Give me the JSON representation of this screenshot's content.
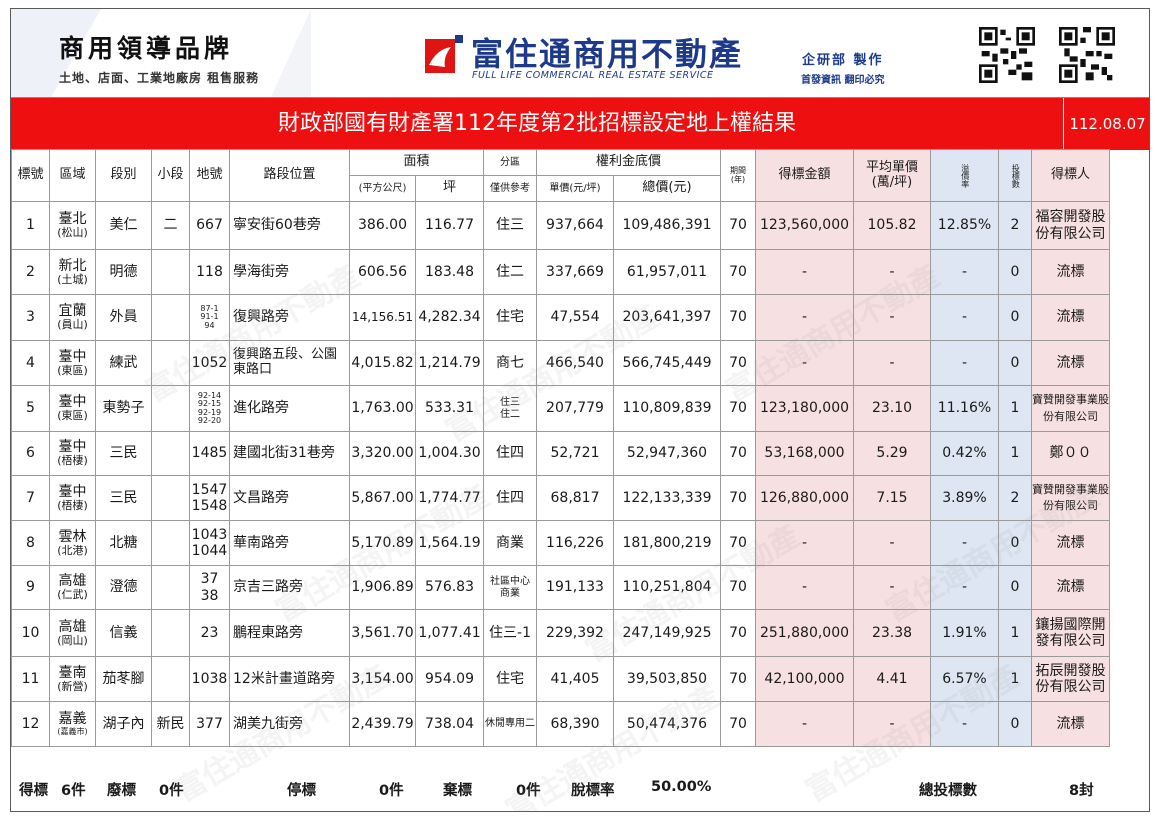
{
  "header": {
    "brand_title": "商用領導品牌",
    "brand_sub": "土地、店面、工業地廠房 租售服務",
    "company_name": "富住通商用不動產",
    "company_en": "FULL LIFE COMMERCIAL REAL ESTATE SERVICE",
    "dept": "企研部 製作",
    "dept_sub": "首發資訊 翻印必究",
    "brand_color": "#1d3a8a"
  },
  "title": {
    "text": "財政部國有財產署112年度第2批招標設定地上權結果",
    "date": "112.08.07",
    "bg_color": "#ee1010"
  },
  "columns": {
    "no": "標號",
    "area": "區域",
    "section": "段別",
    "subsection": "小段",
    "lot": "地號",
    "location": "路段位置",
    "size": "面積",
    "size_m2": "(平方公尺)",
    "size_ping": "坪",
    "zone": "分區",
    "zone_note": "僅供參考",
    "fee": "權利金底價",
    "fee_unit": "單價(元/坪)",
    "fee_total": "總價(元)",
    "term": "期間",
    "term_unit": "(年)",
    "bid": "得標金額",
    "avg": "平均單價",
    "avg_unit": "(萬/坪)",
    "premium": "溢價率",
    "bidders": "投標數",
    "winner": "得標人"
  },
  "rows": [
    {
      "no": "1",
      "area": "臺北",
      "area_sub": "(松山)",
      "section": "美仁",
      "subsection": "二",
      "lot": "667",
      "location": "寧安街60巷旁",
      "m2": "386.00",
      "ping": "116.77",
      "zone": "住三",
      "unit": "937,664",
      "total": "109,486,391",
      "term": "70",
      "bid": "123,560,000",
      "avg": "105.82",
      "premium": "12.85%",
      "bidders": "2",
      "winner": "福容開發股份有限公司"
    },
    {
      "no": "2",
      "area": "新北",
      "area_sub": "(土城)",
      "section": "明德",
      "subsection": "",
      "lot": "118",
      "location": "學海街旁",
      "m2": "606.56",
      "ping": "183.48",
      "zone": "住二",
      "unit": "337,669",
      "total": "61,957,011",
      "term": "70",
      "bid": "-",
      "avg": "-",
      "premium": "-",
      "bidders": "0",
      "winner": "流標"
    },
    {
      "no": "3",
      "area": "宜蘭",
      "area_sub": "(員山)",
      "section": "外員",
      "subsection": "",
      "lot": "87-1\n91-1\n94",
      "location": "復興路旁",
      "m2": "14,156.51",
      "ping": "4,282.34",
      "zone": "住宅",
      "unit": "47,554",
      "total": "203,641,397",
      "term": "70",
      "bid": "-",
      "avg": "-",
      "premium": "-",
      "bidders": "0",
      "winner": "流標"
    },
    {
      "no": "4",
      "area": "臺中",
      "area_sub": "(東區)",
      "section": "練武",
      "subsection": "",
      "lot": "1052",
      "location": "復興路五段、公園東路口",
      "m2": "4,015.82",
      "ping": "1,214.79",
      "zone": "商七",
      "unit": "466,540",
      "total": "566,745,449",
      "term": "70",
      "bid": "-",
      "avg": "-",
      "premium": "-",
      "bidders": "0",
      "winner": "流標"
    },
    {
      "no": "5",
      "area": "臺中",
      "area_sub": "(東區)",
      "section": "東勢子",
      "subsection": "",
      "lot": "92-14\n92-15\n92-19\n92-20",
      "location": "進化路旁",
      "m2": "1,763.00",
      "ping": "533.31",
      "zone": "住三\n住二",
      "unit": "207,779",
      "total": "110,809,839",
      "term": "70",
      "bid": "123,180,000",
      "avg": "23.10",
      "premium": "11.16%",
      "bidders": "1",
      "winner": "寶贊開發事業股份有限公司"
    },
    {
      "no": "6",
      "area": "臺中",
      "area_sub": "(梧棲)",
      "section": "三民",
      "subsection": "",
      "lot": "1485",
      "location": "建國北街31巷旁",
      "m2": "3,320.00",
      "ping": "1,004.30",
      "zone": "住四",
      "unit": "52,721",
      "total": "52,947,360",
      "term": "70",
      "bid": "53,168,000",
      "avg": "5.29",
      "premium": "0.42%",
      "bidders": "1",
      "winner": "鄭００"
    },
    {
      "no": "7",
      "area": "臺中",
      "area_sub": "(梧棲)",
      "section": "三民",
      "subsection": "",
      "lot": "1547\n1548",
      "location": "文昌路旁",
      "m2": "5,867.00",
      "ping": "1,774.77",
      "zone": "住四",
      "unit": "68,817",
      "total": "122,133,339",
      "term": "70",
      "bid": "126,880,000",
      "avg": "7.15",
      "premium": "3.89%",
      "bidders": "2",
      "winner": "寶贊開發事業股份有限公司"
    },
    {
      "no": "8",
      "area": "雲林",
      "area_sub": "(北港)",
      "section": "北糖",
      "subsection": "",
      "lot": "1043\n1044",
      "location": "華南路旁",
      "m2": "5,170.89",
      "ping": "1,564.19",
      "zone": "商業",
      "unit": "116,226",
      "total": "181,800,219",
      "term": "70",
      "bid": "-",
      "avg": "-",
      "premium": "-",
      "bidders": "0",
      "winner": "流標"
    },
    {
      "no": "9",
      "area": "高雄",
      "area_sub": "(仁武)",
      "section": "澄德",
      "subsection": "",
      "lot": "37\n38",
      "location": "京吉三路旁",
      "m2": "1,906.89",
      "ping": "576.83",
      "zone": "社區中心\n商業",
      "unit": "191,133",
      "total": "110,251,804",
      "term": "70",
      "bid": "-",
      "avg": "-",
      "premium": "-",
      "bidders": "0",
      "winner": "流標"
    },
    {
      "no": "10",
      "area": "高雄",
      "area_sub": "(岡山)",
      "section": "信義",
      "subsection": "",
      "lot": "23",
      "location": "鵬程東路旁",
      "m2": "3,561.70",
      "ping": "1,077.41",
      "zone": "住三-1",
      "unit": "229,392",
      "total": "247,149,925",
      "term": "70",
      "bid": "251,880,000",
      "avg": "23.38",
      "premium": "1.91%",
      "bidders": "1",
      "winner": "鑲揚國際開發有限公司"
    },
    {
      "no": "11",
      "area": "臺南",
      "area_sub": "(新營)",
      "section": "茄苳腳",
      "subsection": "",
      "lot": "1038",
      "location": "12米計畫道路旁",
      "m2": "3,154.00",
      "ping": "954.09",
      "zone": "住宅",
      "unit": "41,405",
      "total": "39,503,850",
      "term": "70",
      "bid": "42,100,000",
      "avg": "4.41",
      "premium": "6.57%",
      "bidders": "1",
      "winner": "拓辰開發股份有限公司"
    },
    {
      "no": "12",
      "area": "嘉義",
      "area_sub": "(嘉義市)",
      "section": "湖子內",
      "subsection": "新民",
      "lot": "377",
      "location": "湖美九街旁",
      "m2": "2,439.79",
      "ping": "738.04",
      "zone": "休閒專用二",
      "unit": "68,390",
      "total": "50,474,376",
      "term": "70",
      "bid": "-",
      "avg": "-",
      "premium": "-",
      "bidders": "0",
      "winner": "流標"
    }
  ],
  "footer": {
    "won_label": "得標",
    "won_value": "6件",
    "void_label": "廢標",
    "void_value": "0件",
    "stop_label": "停標",
    "stop_value": "0件",
    "abandon_label": "棄標",
    "abandon_value": "0件",
    "rate_label": "脫標率",
    "rate_value": "50.00%",
    "total_label": "總投標數",
    "total_value": "8封"
  },
  "watermark": "富住通商用不動產",
  "colors": {
    "pink": "#f7e0e2",
    "blue": "#dde6f2"
  }
}
